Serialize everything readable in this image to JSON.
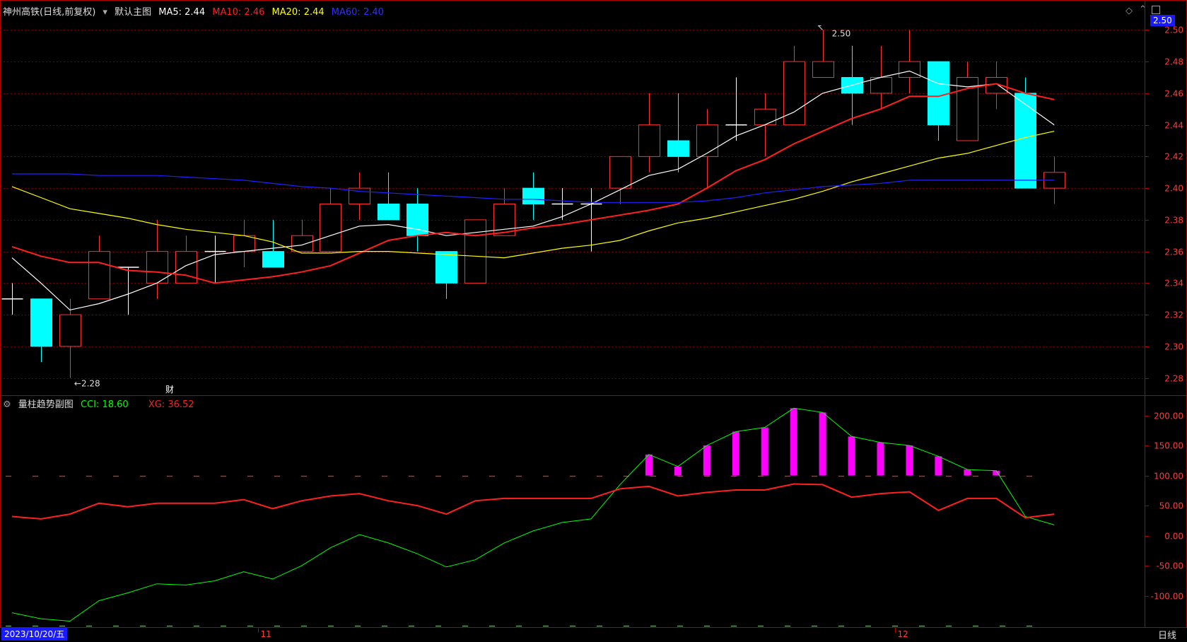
{
  "main_header": {
    "stock_title": "神州高铁(日线,前复权)",
    "menu_label": "默认主图",
    "ma5": {
      "label": "MA5:",
      "value": "2.44",
      "color": "#ffffff"
    },
    "ma10": {
      "label": "MA10:",
      "value": "2.46",
      "color": "#ff2020"
    },
    "ma20": {
      "label": "MA20:",
      "value": "2.44",
      "color": "#ffff00"
    },
    "ma60": {
      "label": "MA60:",
      "value": "2.40",
      "color": "#2020ff"
    }
  },
  "sub_header": {
    "title": "量柱趋势副图",
    "cci": {
      "label": "CCI:",
      "value": "18.60",
      "color": "#00ff00"
    },
    "xg": {
      "label": "XG:",
      "value": "36.52",
      "color": "#ff2020"
    }
  },
  "current_price_tag": "2.50",
  "max_annotation": "2.50",
  "min_annotation": "←2.28",
  "cai_marker": "财",
  "date_label": "2023/10/20/五",
  "period_label": "日线",
  "colors": {
    "up": "#ff3030",
    "down": "#00ffff",
    "grid": "#7a0000",
    "axis": "#b00000",
    "magenta": "#ff00ff"
  },
  "chart_data": [
    {
      "type": "candlestick",
      "title": "神州高铁(日线,前复权)",
      "ylim": [
        2.27,
        2.51
      ],
      "y_ticks": [
        "2.28",
        "2.30",
        "2.32",
        "2.34",
        "2.36",
        "2.38",
        "2.40",
        "2.42",
        "2.44",
        "2.46",
        "2.48",
        "2.50"
      ],
      "x_labels": [
        {
          "index": 8,
          "label": "11"
        },
        {
          "index": 30,
          "label": "12"
        }
      ],
      "candles": [
        {
          "o": 2.33,
          "h": 2.34,
          "l": 2.32,
          "c": 2.33
        },
        {
          "o": 2.33,
          "h": 2.33,
          "l": 2.29,
          "c": 2.3
        },
        {
          "o": 2.3,
          "h": 2.33,
          "l": 2.28,
          "c": 2.32
        },
        {
          "o": 2.33,
          "h": 2.37,
          "l": 2.33,
          "c": 2.36
        },
        {
          "o": 2.35,
          "h": 2.35,
          "l": 2.32,
          "c": 2.35
        },
        {
          "o": 2.34,
          "h": 2.38,
          "l": 2.33,
          "c": 2.36
        },
        {
          "o": 2.34,
          "h": 2.37,
          "l": 2.34,
          "c": 2.36
        },
        {
          "o": 2.36,
          "h": 2.37,
          "l": 2.34,
          "c": 2.36
        },
        {
          "o": 2.36,
          "h": 2.38,
          "l": 2.35,
          "c": 2.37
        },
        {
          "o": 2.36,
          "h": 2.38,
          "l": 2.35,
          "c": 2.35
        },
        {
          "o": 2.36,
          "h": 2.38,
          "l": 2.36,
          "c": 2.37
        },
        {
          "o": 2.36,
          "h": 2.4,
          "l": 2.36,
          "c": 2.39
        },
        {
          "o": 2.39,
          "h": 2.41,
          "l": 2.38,
          "c": 2.4
        },
        {
          "o": 2.39,
          "h": 2.41,
          "l": 2.38,
          "c": 2.38
        },
        {
          "o": 2.39,
          "h": 2.4,
          "l": 2.36,
          "c": 2.37
        },
        {
          "o": 2.36,
          "h": 2.36,
          "l": 2.33,
          "c": 2.34
        },
        {
          "o": 2.34,
          "h": 2.38,
          "l": 2.34,
          "c": 2.38
        },
        {
          "o": 2.37,
          "h": 2.4,
          "l": 2.37,
          "c": 2.39
        },
        {
          "o": 2.4,
          "h": 2.41,
          "l": 2.38,
          "c": 2.39
        },
        {
          "o": 2.39,
          "h": 2.4,
          "l": 2.38,
          "c": 2.39
        },
        {
          "o": 2.39,
          "h": 2.4,
          "l": 2.36,
          "c": 2.39
        },
        {
          "o": 2.4,
          "h": 2.42,
          "l": 2.39,
          "c": 2.42
        },
        {
          "o": 2.42,
          "h": 2.46,
          "l": 2.41,
          "c": 2.44
        },
        {
          "o": 2.43,
          "h": 2.46,
          "l": 2.41,
          "c": 2.42
        },
        {
          "o": 2.42,
          "h": 2.45,
          "l": 2.4,
          "c": 2.44
        },
        {
          "o": 2.44,
          "h": 2.47,
          "l": 2.43,
          "c": 2.44
        },
        {
          "o": 2.44,
          "h": 2.46,
          "l": 2.42,
          "c": 2.45
        },
        {
          "o": 2.44,
          "h": 2.49,
          "l": 2.44,
          "c": 2.48
        },
        {
          "o": 2.47,
          "h": 2.5,
          "l": 2.47,
          "c": 2.48
        },
        {
          "o": 2.47,
          "h": 2.49,
          "l": 2.44,
          "c": 2.46
        },
        {
          "o": 2.46,
          "h": 2.49,
          "l": 2.45,
          "c": 2.47
        },
        {
          "o": 2.47,
          "h": 2.5,
          "l": 2.46,
          "c": 2.48
        },
        {
          "o": 2.48,
          "h": 2.48,
          "l": 2.43,
          "c": 2.44
        },
        {
          "o": 2.43,
          "h": 2.48,
          "l": 2.43,
          "c": 2.47
        },
        {
          "o": 2.46,
          "h": 2.48,
          "l": 2.45,
          "c": 2.47
        },
        {
          "o": 2.46,
          "h": 2.47,
          "l": 2.4,
          "c": 2.4
        },
        {
          "o": 2.4,
          "h": 2.42,
          "l": 2.39,
          "c": 2.41
        }
      ],
      "series": [
        {
          "name": "MA5",
          "color": "#ffffff",
          "values": [
            2.356,
            2.34,
            2.323,
            2.327,
            2.333,
            2.34,
            2.351,
            2.358,
            2.36,
            2.362,
            2.364,
            2.37,
            2.376,
            2.377,
            2.374,
            2.37,
            2.372,
            2.374,
            2.376,
            2.382,
            2.39,
            2.399,
            2.408,
            2.412,
            2.422,
            2.433,
            2.44,
            2.448,
            2.46,
            2.465,
            2.47,
            2.474,
            2.466,
            2.464,
            2.466,
            2.453,
            2.44
          ]
        },
        {
          "name": "MA10",
          "color": "#ff2020",
          "values": [
            2.363,
            2.357,
            2.353,
            2.353,
            2.348,
            2.347,
            2.345,
            2.34,
            2.342,
            2.344,
            2.347,
            2.351,
            2.359,
            2.367,
            2.37,
            2.372,
            2.37,
            2.372,
            2.375,
            2.377,
            2.38,
            2.383,
            2.386,
            2.39,
            2.4,
            2.411,
            2.418,
            2.428,
            2.436,
            2.444,
            2.45,
            2.458,
            2.458,
            2.463,
            2.466,
            2.46,
            2.456
          ]
        },
        {
          "name": "MA20",
          "color": "#ffff00",
          "values": [
            2.401,
            2.394,
            2.387,
            2.384,
            2.381,
            2.377,
            2.374,
            2.372,
            2.37,
            2.366,
            2.359,
            2.359,
            2.36,
            2.36,
            2.359,
            2.358,
            2.357,
            2.356,
            2.359,
            2.362,
            2.364,
            2.367,
            2.373,
            2.378,
            2.381,
            2.385,
            2.389,
            2.393,
            2.398,
            2.404,
            2.409,
            2.414,
            2.419,
            2.422,
            2.427,
            2.432,
            2.436
          ]
        },
        {
          "name": "MA60",
          "color": "#2020ff",
          "values": [
            2.409,
            2.409,
            2.409,
            2.408,
            2.408,
            2.408,
            2.407,
            2.406,
            2.405,
            2.403,
            2.401,
            2.4,
            2.398,
            2.397,
            2.396,
            2.395,
            2.394,
            2.393,
            2.393,
            2.392,
            2.391,
            2.391,
            2.391,
            2.391,
            2.392,
            2.394,
            2.397,
            2.399,
            2.401,
            2.402,
            2.403,
            2.405,
            2.405,
            2.405,
            2.405,
            2.405,
            2.405
          ]
        }
      ]
    },
    {
      "type": "line",
      "title": "量柱趋势副图",
      "ylim": [
        -152,
        230
      ],
      "y_ticks": [
        "200.00",
        "150.00",
        "100.00",
        "50.00",
        "0.00",
        "-50.00",
        "-100.00"
      ],
      "ref_lines": [
        {
          "value": 100,
          "color": "#ff2020"
        },
        {
          "value": -150,
          "color": "#00ff00"
        }
      ],
      "series": [
        {
          "name": "CCI",
          "color": "#00ff00",
          "values": [
            -128,
            -138,
            -142,
            -108,
            -95,
            -80,
            -82,
            -75,
            -60,
            -72,
            -50,
            -20,
            2,
            -12,
            -30,
            -52,
            -40,
            -12,
            8,
            22,
            28,
            85,
            135,
            115,
            150,
            173,
            180,
            212,
            205,
            165,
            155,
            150,
            132,
            110,
            108,
            32,
            18
          ]
        },
        {
          "name": "XG",
          "color": "#ff2020",
          "values": [
            32,
            28,
            36,
            54,
            48,
            54,
            54,
            54,
            60,
            45,
            58,
            66,
            70,
            58,
            50,
            36,
            58,
            62,
            62,
            62,
            62,
            78,
            82,
            66,
            72,
            76,
            76,
            86,
            85,
            64,
            70,
            73,
            42,
            62,
            62,
            30,
            36
          ]
        }
      ],
      "bars": {
        "color": "#ff00ff",
        "baseline": 100,
        "from_index": 22,
        "values": [
          135,
          115,
          150,
          173,
          180,
          212,
          205,
          165,
          155,
          150,
          132,
          110,
          108
        ]
      }
    }
  ]
}
